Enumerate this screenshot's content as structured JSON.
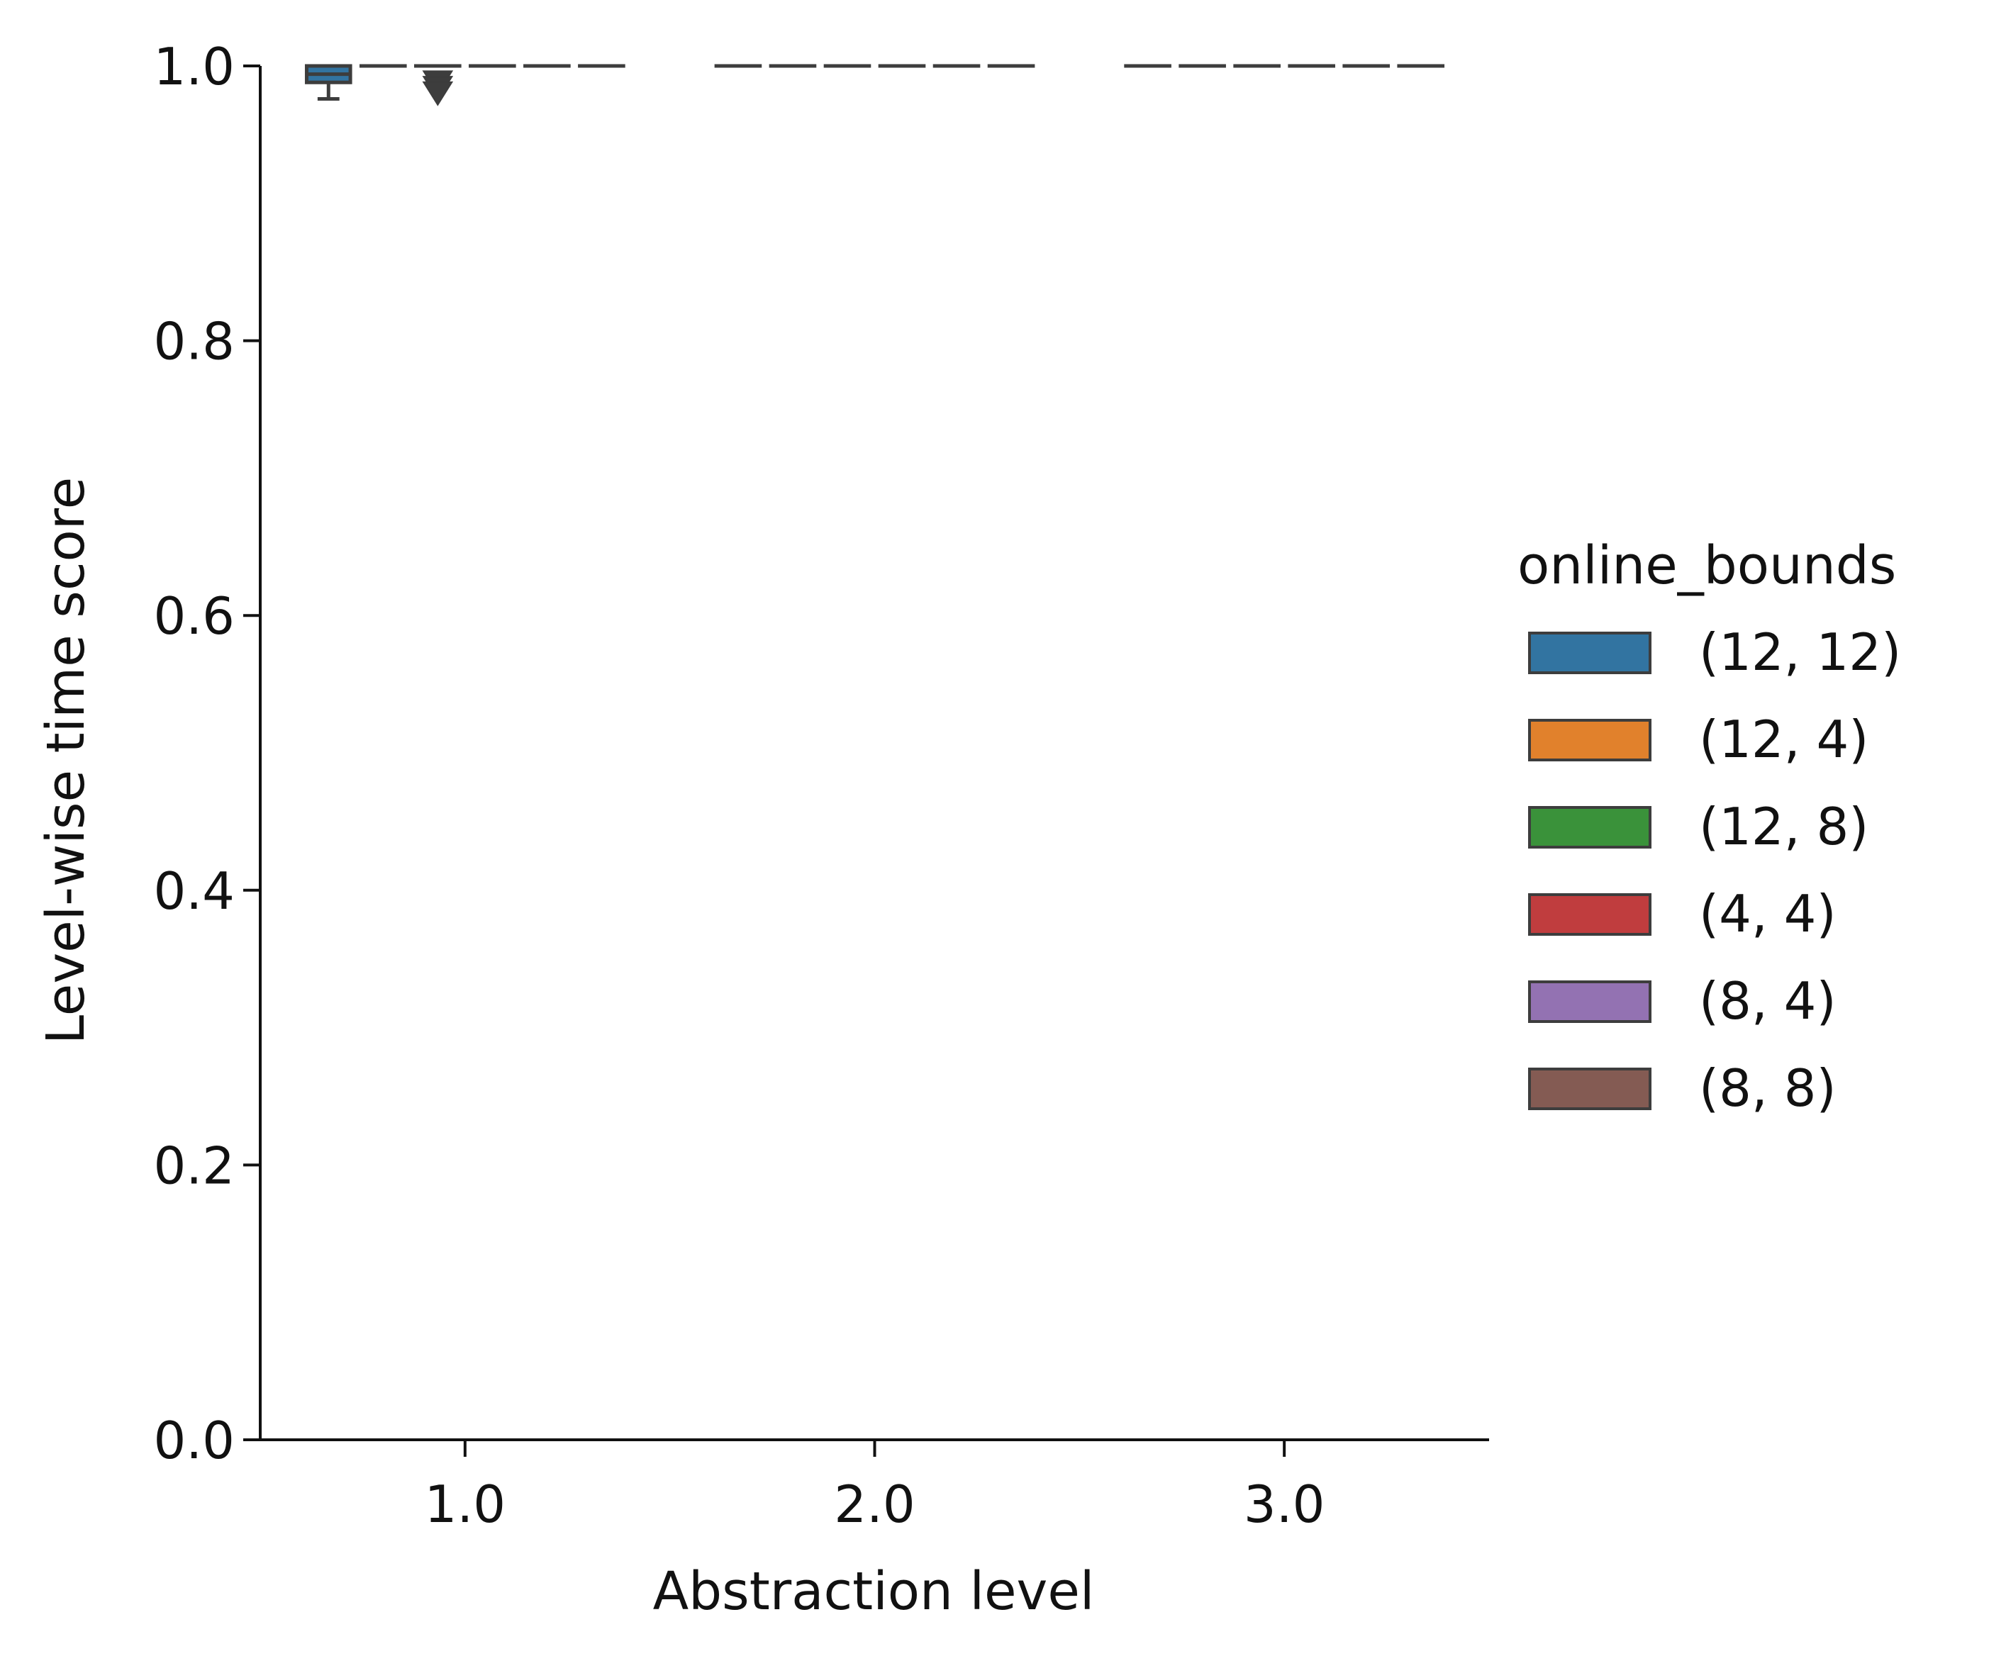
{
  "chart_data": {
    "type": "box",
    "xlabel": "Abstraction level",
    "ylabel": "Level-wise time score",
    "categories": [
      "1.0",
      "2.0",
      "3.0"
    ],
    "ylim": [
      0.0,
      1.0
    ],
    "yticks": [
      "0.0",
      "0.2",
      "0.4",
      "0.6",
      "0.8",
      "1.0"
    ],
    "grid": false,
    "legend": {
      "title": "online_bounds",
      "placement": "right",
      "entries": [
        {
          "label": "(12, 12)",
          "color": "#3274a1"
        },
        {
          "label": "(12, 4)",
          "color": "#e1812c"
        },
        {
          "label": "(12, 8)",
          "color": "#3a923a"
        },
        {
          "label": "(4, 4)",
          "color": "#c03d3e"
        },
        {
          "label": "(8, 4)",
          "color": "#9372b2"
        },
        {
          "label": "(8, 8)",
          "color": "#845b53"
        }
      ]
    },
    "series": [
      {
        "name": "(12, 12)",
        "boxes": [
          {
            "category": "1.0",
            "whisker_low": 0.976,
            "q1": 0.988,
            "median": 0.994,
            "q3": 1.0,
            "whisker_high": 1.0,
            "outliers": []
          },
          {
            "category": "2.0",
            "whisker_low": 1.0,
            "q1": 1.0,
            "median": 1.0,
            "q3": 1.0,
            "whisker_high": 1.0,
            "outliers": []
          },
          {
            "category": "3.0",
            "whisker_low": 1.0,
            "q1": 1.0,
            "median": 1.0,
            "q3": 1.0,
            "whisker_high": 1.0,
            "outliers": []
          }
        ]
      },
      {
        "name": "(12, 4)",
        "boxes": [
          {
            "category": "1.0",
            "whisker_low": 1.0,
            "q1": 1.0,
            "median": 1.0,
            "q3": 1.0,
            "whisker_high": 1.0,
            "outliers": []
          },
          {
            "category": "2.0",
            "whisker_low": 1.0,
            "q1": 1.0,
            "median": 1.0,
            "q3": 1.0,
            "whisker_high": 1.0,
            "outliers": []
          },
          {
            "category": "3.0",
            "whisker_low": 1.0,
            "q1": 1.0,
            "median": 1.0,
            "q3": 1.0,
            "whisker_high": 1.0,
            "outliers": []
          }
        ]
      },
      {
        "name": "(12, 8)",
        "boxes": [
          {
            "category": "1.0",
            "whisker_low": 1.0,
            "q1": 1.0,
            "median": 1.0,
            "q3": 1.0,
            "whisker_high": 1.0,
            "outliers": [
              0.99,
              0.986,
              0.982
            ]
          },
          {
            "category": "2.0",
            "whisker_low": 1.0,
            "q1": 1.0,
            "median": 1.0,
            "q3": 1.0,
            "whisker_high": 1.0,
            "outliers": []
          },
          {
            "category": "3.0",
            "whisker_low": 1.0,
            "q1": 1.0,
            "median": 1.0,
            "q3": 1.0,
            "whisker_high": 1.0,
            "outliers": []
          }
        ]
      },
      {
        "name": "(4, 4)",
        "boxes": [
          {
            "category": "1.0",
            "whisker_low": 1.0,
            "q1": 1.0,
            "median": 1.0,
            "q3": 1.0,
            "whisker_high": 1.0,
            "outliers": []
          },
          {
            "category": "2.0",
            "whisker_low": 1.0,
            "q1": 1.0,
            "median": 1.0,
            "q3": 1.0,
            "whisker_high": 1.0,
            "outliers": []
          },
          {
            "category": "3.0",
            "whisker_low": 1.0,
            "q1": 1.0,
            "median": 1.0,
            "q3": 1.0,
            "whisker_high": 1.0,
            "outliers": []
          }
        ]
      },
      {
        "name": "(8, 4)",
        "boxes": [
          {
            "category": "1.0",
            "whisker_low": 1.0,
            "q1": 1.0,
            "median": 1.0,
            "q3": 1.0,
            "whisker_high": 1.0,
            "outliers": []
          },
          {
            "category": "2.0",
            "whisker_low": 1.0,
            "q1": 1.0,
            "median": 1.0,
            "q3": 1.0,
            "whisker_high": 1.0,
            "outliers": []
          },
          {
            "category": "3.0",
            "whisker_low": 1.0,
            "q1": 1.0,
            "median": 1.0,
            "q3": 1.0,
            "whisker_high": 1.0,
            "outliers": []
          }
        ]
      },
      {
        "name": "(8, 8)",
        "boxes": [
          {
            "category": "1.0",
            "whisker_low": 1.0,
            "q1": 1.0,
            "median": 1.0,
            "q3": 1.0,
            "whisker_high": 1.0,
            "outliers": []
          },
          {
            "category": "2.0",
            "whisker_low": 1.0,
            "q1": 1.0,
            "median": 1.0,
            "q3": 1.0,
            "whisker_high": 1.0,
            "outliers": []
          },
          {
            "category": "3.0",
            "whisker_low": 1.0,
            "q1": 1.0,
            "median": 1.0,
            "q3": 1.0,
            "whisker_high": 1.0,
            "outliers": []
          }
        ]
      }
    ]
  }
}
